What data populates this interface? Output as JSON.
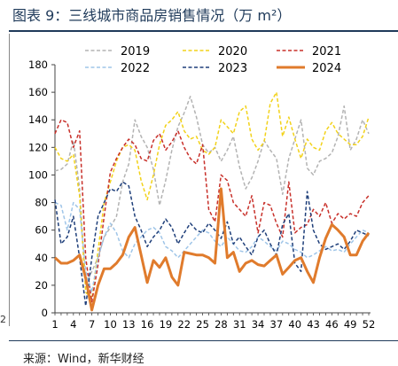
{
  "header": {
    "title": "图表 9：三线城市商品房销售情况（万 m²）"
  },
  "footer": {
    "source": "来源：Wind，新华财经"
  },
  "edge_marks": [
    "2"
  ],
  "colors": {
    "2019": "#b3b3b3",
    "2020": "#f2d21a",
    "2021": "#c8302a",
    "2022": "#9fc5e8",
    "2023": "#1f3f7a",
    "2024": "#e07b2c",
    "rule": "#1f3a5a"
  },
  "chart_data": {
    "type": "line",
    "title": "",
    "xlabel": "",
    "ylabel": "",
    "xlim": [
      1,
      52
    ],
    "ylim": [
      0,
      180
    ],
    "x": [
      1,
      2,
      3,
      4,
      5,
      6,
      7,
      8,
      9,
      10,
      11,
      12,
      13,
      14,
      15,
      16,
      17,
      18,
      19,
      20,
      21,
      22,
      23,
      24,
      25,
      26,
      27,
      28,
      29,
      30,
      31,
      32,
      33,
      34,
      35,
      36,
      37,
      38,
      39,
      40,
      41,
      42,
      43,
      44,
      45,
      46,
      47,
      48,
      49,
      50,
      51,
      52
    ],
    "x_ticks": [
      1,
      4,
      7,
      10,
      13,
      16,
      19,
      22,
      25,
      28,
      31,
      34,
      37,
      40,
      43,
      46,
      49,
      52
    ],
    "y_ticks": [
      0,
      20,
      40,
      60,
      80,
      100,
      120,
      140,
      160,
      180
    ],
    "grid": false,
    "legend_position": "top",
    "series": [
      {
        "name": "2019",
        "style": "dashed",
        "values": [
          103,
          104,
          108,
          125,
          90,
          20,
          30,
          40,
          55,
          62,
          70,
          95,
          108,
          140,
          128,
          120,
          104,
          78,
          96,
          118,
          135,
          145,
          157,
          142,
          122,
          116,
          120,
          110,
          118,
          128,
          106,
          90,
          98,
          110,
          125,
          118,
          112,
          86,
          112,
          126,
          140,
          105,
          100,
          110,
          112,
          116,
          128,
          150,
          118,
          126,
          140,
          130
        ]
      },
      {
        "name": "2020",
        "style": "dashed",
        "values": [
          120,
          112,
          110,
          115,
          85,
          15,
          10,
          45,
          80,
          95,
          110,
          120,
          122,
          118,
          96,
          82,
          100,
          122,
          136,
          140,
          146,
          132,
          126,
          128,
          118,
          115,
          120,
          140,
          135,
          130,
          146,
          150,
          126,
          118,
          124,
          152,
          160,
          128,
          142,
          126,
          112,
          126,
          120,
          118,
          132,
          138,
          130,
          126,
          122,
          122,
          128,
          142
        ]
      },
      {
        "name": "2021",
        "style": "dashed",
        "values": [
          130,
          140,
          138,
          120,
          132,
          40,
          8,
          35,
          70,
          102,
          112,
          120,
          126,
          122,
          112,
          110,
          125,
          130,
          118,
          124,
          132,
          120,
          112,
          108,
          122,
          75,
          66,
          100,
          96,
          80,
          75,
          70,
          85,
          58,
          80,
          78,
          65,
          55,
          95,
          58,
          62,
          64,
          75,
          70,
          80,
          65,
          72,
          68,
          72,
          70,
          80,
          85
        ]
      },
      {
        "name": "2022",
        "style": "dashed",
        "values": [
          80,
          78,
          60,
          80,
          75,
          30,
          15,
          40,
          55,
          65,
          58,
          45,
          40,
          50,
          55,
          60,
          62,
          58,
          48,
          45,
          40,
          45,
          50,
          55,
          60,
          58,
          52,
          48,
          55,
          50,
          45,
          44,
          48,
          55,
          52,
          48,
          45,
          52,
          50,
          46,
          44,
          40,
          42,
          45,
          48,
          45,
          46,
          44,
          50,
          55,
          60,
          58
        ]
      },
      {
        "name": "2023",
        "style": "dashed",
        "values": [
          82,
          50,
          55,
          70,
          40,
          5,
          40,
          70,
          80,
          90,
          88,
          95,
          92,
          70,
          60,
          48,
          55,
          60,
          68,
          62,
          50,
          58,
          65,
          60,
          58,
          65,
          60,
          54,
          66,
          50,
          55,
          48,
          42,
          55,
          60,
          50,
          42,
          64,
          72,
          36,
          30,
          88,
          60,
          50,
          46,
          48,
          50,
          46,
          52,
          60,
          58,
          56
        ]
      },
      {
        "name": "2024",
        "style": "solid",
        "values": [
          40,
          36,
          36,
          38,
          42,
          25,
          2,
          20,
          32,
          32,
          36,
          42,
          55,
          62,
          42,
          22,
          38,
          33,
          40,
          26,
          20,
          44,
          43,
          42,
          42,
          40,
          36,
          90,
          40,
          44,
          30,
          36,
          38,
          35,
          34,
          38,
          42,
          28,
          33,
          38,
          40,
          30,
          22,
          40,
          54,
          64,
          60,
          55,
          42,
          42,
          52,
          58
        ]
      }
    ]
  }
}
